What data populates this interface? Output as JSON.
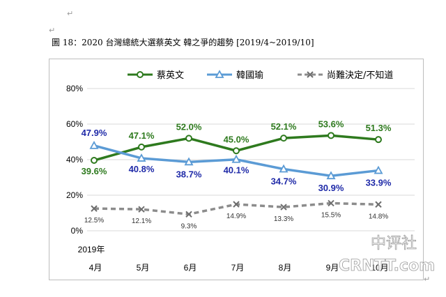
{
  "caption": {
    "text": "圖 18：2020 台灣總統大選蔡英文 韓之爭的趨勢 [2019/4~2019/10]",
    "para_mark": "↵"
  },
  "chart_data": {
    "type": "line",
    "title": "",
    "year_label": "2019年",
    "categories": [
      "4月",
      "5月",
      "6月",
      "7月",
      "8月",
      "9月",
      "10月"
    ],
    "yticks": [
      "0%",
      "20%",
      "40%",
      "60%",
      "80%"
    ],
    "ylim": [
      0,
      80
    ],
    "grid": "horizontal",
    "legend_position": "top",
    "series": [
      {
        "name": "蔡英文",
        "values": [
          39.6,
          47.1,
          52.0,
          45.0,
          52.1,
          53.6,
          51.3
        ],
        "labels": [
          "39.6%",
          "47.1%",
          "52.0%",
          "45.0%",
          "52.1%",
          "53.6%",
          "51.3%"
        ],
        "color": "#2e7a1e",
        "label_color": "#2e7a1e",
        "marker": "circle",
        "dash": false
      },
      {
        "name": "韓國瑜",
        "values": [
          47.9,
          40.8,
          38.7,
          40.1,
          34.7,
          30.9,
          33.9
        ],
        "labels": [
          "47.9%",
          "40.8%",
          "38.7%",
          "40.1%",
          "34.7%",
          "30.9%",
          "33.9%"
        ],
        "color": "#5b9bd5",
        "label_color": "#1f2aa8",
        "marker": "triangle",
        "dash": false
      },
      {
        "name": "尚難決定/不知道",
        "values": [
          12.5,
          12.1,
          9.3,
          14.9,
          13.3,
          15.5,
          14.8
        ],
        "labels": [
          "12.5%",
          "12.1%",
          "9.3%",
          "14.9%",
          "13.3%",
          "15.5%",
          "14.8%"
        ],
        "color": "#8c8c8c",
        "label_color": "#333333",
        "marker": "x",
        "dash": true
      }
    ]
  },
  "watermark": {
    "line1": "中评社",
    "line2": "CRNTT.com"
  }
}
